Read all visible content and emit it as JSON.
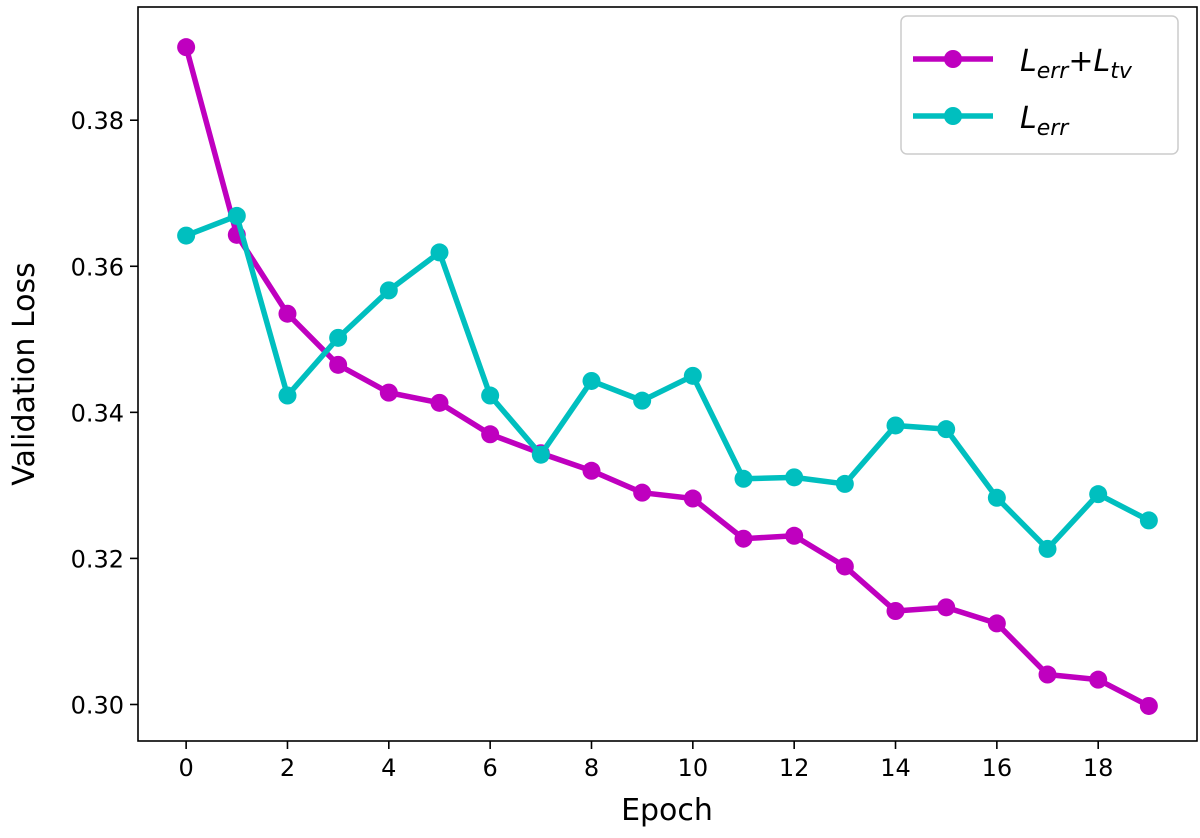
{
  "chart_data": {
    "type": "line",
    "title": "",
    "xlabel": "Epoch",
    "ylabel": "Validation Loss",
    "xlim": [
      -0.95,
      19.95
    ],
    "ylim": [
      0.295,
      0.3955
    ],
    "xticks": [
      0,
      2,
      4,
      6,
      8,
      10,
      12,
      14,
      16,
      18
    ],
    "xtick_labels": [
      "0",
      "2",
      "4",
      "6",
      "8",
      "10",
      "12",
      "14",
      "16",
      "18"
    ],
    "yticks": [
      0.3,
      0.32,
      0.34,
      0.36,
      0.38
    ],
    "ytick_labels": [
      "0.30",
      "0.32",
      "0.34",
      "0.36",
      "0.38"
    ],
    "grid": false,
    "legend_position": "top-right",
    "x": [
      0,
      1,
      2,
      3,
      4,
      5,
      6,
      7,
      8,
      9,
      10,
      11,
      12,
      13,
      14,
      15,
      16,
      17,
      18,
      19
    ],
    "series": [
      {
        "name_main": "L",
        "name_sub1": "err",
        "name_plus": "+",
        "name_main2": "L",
        "name_sub2": "tv",
        "color": "#bf00bf",
        "values": [
          0.39,
          0.3643,
          0.3535,
          0.3465,
          0.3427,
          0.3413,
          0.337,
          0.3344,
          0.332,
          0.329,
          0.3282,
          0.3227,
          0.3231,
          0.3189,
          0.3128,
          0.3133,
          0.3111,
          0.3041,
          0.3034,
          0.2998
        ]
      },
      {
        "name_main": "L",
        "name_sub1": "err",
        "color": "#00bfbf",
        "values": [
          0.3642,
          0.3669,
          0.3423,
          0.3502,
          0.3567,
          0.3619,
          0.3423,
          0.3342,
          0.3443,
          0.3416,
          0.345,
          0.3309,
          0.3311,
          0.3302,
          0.3382,
          0.3377,
          0.3283,
          0.3213,
          0.3288,
          0.3252
        ]
      }
    ]
  }
}
